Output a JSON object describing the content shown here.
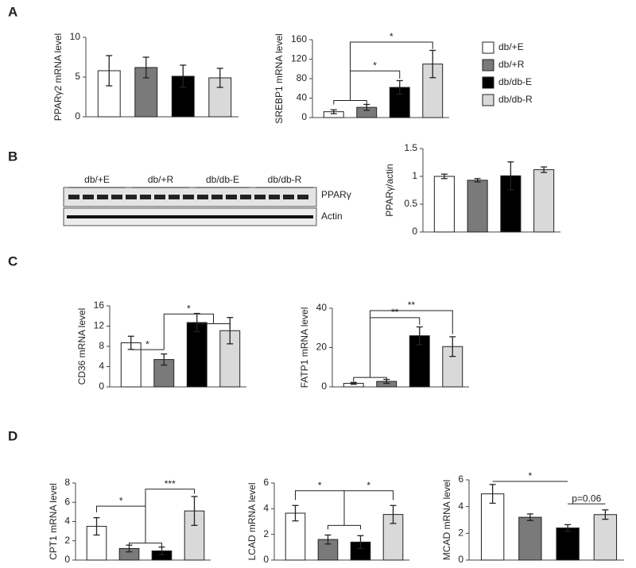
{
  "panel_labels": [
    "A",
    "B",
    "C",
    "D"
  ],
  "groups": [
    {
      "name": "db/+E",
      "color": "#ffffff"
    },
    {
      "name": "db/+R",
      "color": "#7a7a7a"
    },
    {
      "name": "db/db-E",
      "color": "#000000"
    },
    {
      "name": "db/db-R",
      "color": "#d9d9d9"
    }
  ],
  "blot": {
    "lanes": [
      "db/+E",
      "db/+R",
      "db/db-E",
      "db/db-R"
    ],
    "bands": [
      "PPARγ",
      "Actin"
    ]
  },
  "chart_data": [
    {
      "type": "bar",
      "y_label": "PPARγ2 mRNA level",
      "values": [
        5.8,
        6.2,
        5.1,
        4.9
      ],
      "errors": [
        1.9,
        1.3,
        1.4,
        1.2
      ],
      "ylim": [
        0,
        10
      ],
      "yticks": [
        0,
        5,
        10
      ],
      "annotations": []
    },
    {
      "type": "bar",
      "y_label": "SREBP1 mRNA level",
      "values": [
        12,
        21,
        62,
        110
      ],
      "errors": [
        4,
        6,
        14,
        28
      ],
      "ylim": [
        0,
        160
      ],
      "yticks": [
        0,
        40,
        80,
        120,
        160
      ],
      "annotations": [
        "*",
        "*"
      ]
    },
    {
      "type": "bar",
      "y_label": "PPARγ/actin",
      "values": [
        1.0,
        0.93,
        1.01,
        1.12
      ],
      "errors": [
        0.04,
        0.03,
        0.25,
        0.05
      ],
      "ylim": [
        0,
        1.5
      ],
      "yticks": [
        0,
        0.5,
        1,
        1.5
      ],
      "annotations": []
    },
    {
      "type": "bar",
      "y_label": "CD36 mRNA level",
      "values": [
        8.7,
        5.4,
        12.7,
        11.1
      ],
      "errors": [
        1.3,
        1.1,
        1.8,
        2.6
      ],
      "ylim": [
        0,
        16
      ],
      "yticks": [
        0,
        4,
        8,
        12,
        16
      ],
      "annotations": [
        "*",
        "*"
      ]
    },
    {
      "type": "bar",
      "y_label": "FATP1 mRNA level",
      "values": [
        1.8,
        2.8,
        26,
        20.5
      ],
      "errors": [
        0.5,
        1,
        4.5,
        5
      ],
      "ylim": [
        0,
        40
      ],
      "yticks": [
        0,
        20,
        40
      ],
      "annotations": [
        "**",
        "**"
      ]
    },
    {
      "type": "bar",
      "y_label": "CPT1 mRNA level",
      "values": [
        3.5,
        1.2,
        0.95,
        5.1
      ],
      "errors": [
        0.9,
        0.35,
        0.4,
        1.5
      ],
      "ylim": [
        0,
        8
      ],
      "yticks": [
        0,
        2,
        4,
        6,
        8
      ],
      "annotations": [
        "*",
        "***"
      ]
    },
    {
      "type": "bar",
      "y_label": "LCAD mRNA level",
      "values": [
        3.65,
        1.6,
        1.4,
        3.55
      ],
      "errors": [
        0.6,
        0.35,
        0.5,
        0.7
      ],
      "ylim": [
        0,
        6
      ],
      "yticks": [
        0,
        2,
        4,
        6
      ],
      "annotations": [
        "*",
        "*"
      ]
    },
    {
      "type": "bar",
      "y_label": "MCAD mRNA level",
      "values": [
        4.95,
        3.2,
        2.4,
        3.4
      ],
      "errors": [
        0.7,
        0.25,
        0.25,
        0.35
      ],
      "ylim": [
        0,
        6
      ],
      "yticks": [
        0,
        2,
        4,
        6
      ],
      "annotations": [
        "*",
        "p=0.06"
      ]
    }
  ]
}
